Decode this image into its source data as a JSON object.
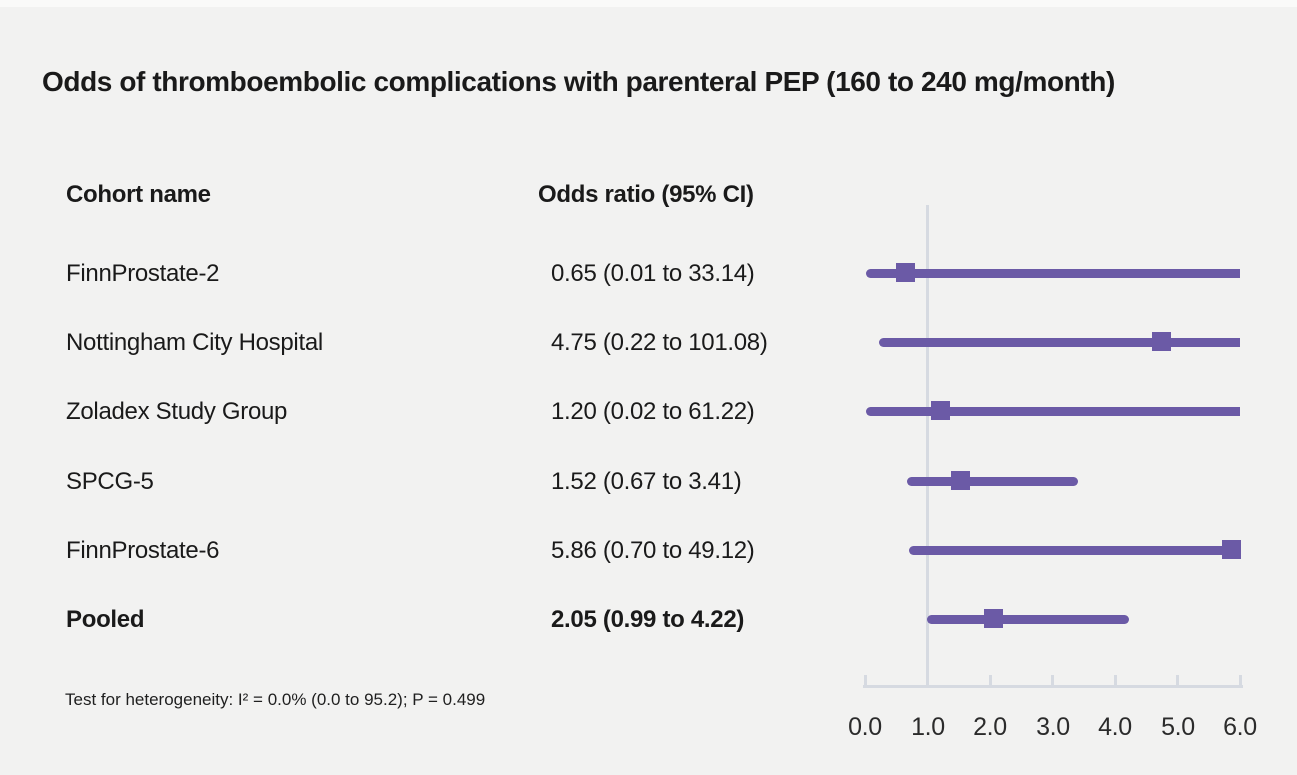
{
  "title": "Odds of thromboembolic complications with parenteral PEP (160 to 240 mg/month)",
  "table": {
    "cohort_header": "Cohort name",
    "or_header": "Odds ratio (95% CI)"
  },
  "footnote": "Test for heterogeneity: I² = 0.0% (0.0 to 95.2); P = 0.499",
  "chart_data": {
    "type": "forest",
    "title": "Odds of thromboembolic complications with parenteral PEP (160 to 240 mg/month)",
    "columns": [
      "Cohort name",
      "Odds ratio (95% CI)"
    ],
    "rows": [
      {
        "cohort": "FinnProstate-2",
        "label": "0.65 (0.01 to 33.14)",
        "or": 0.65,
        "lo": 0.01,
        "hi": 33.14,
        "pooled": false
      },
      {
        "cohort": "Nottingham City Hospital",
        "label": "4.75 (0.22 to 101.08)",
        "or": 4.75,
        "lo": 0.22,
        "hi": 101.08,
        "pooled": false
      },
      {
        "cohort": "Zoladex Study Group",
        "label": "1.20 (0.02 to 61.22)",
        "or": 1.2,
        "lo": 0.02,
        "hi": 61.22,
        "pooled": false
      },
      {
        "cohort": "SPCG-5",
        "label": "1.52 (0.67 to 3.41)",
        "or": 1.52,
        "lo": 0.67,
        "hi": 3.41,
        "pooled": false
      },
      {
        "cohort": "FinnProstate-6",
        "label": "5.86 (0.70 to 49.12)",
        "or": 5.86,
        "lo": 0.7,
        "hi": 49.12,
        "pooled": false
      },
      {
        "cohort": "Pooled",
        "label": "2.05 (0.99 to 4.22)",
        "or": 2.05,
        "lo": 0.99,
        "hi": 4.22,
        "pooled": true
      }
    ],
    "x_ticks": [
      "0.0",
      "1.0",
      "2.0",
      "3.0",
      "4.0",
      "5.0",
      "6.0"
    ],
    "xlim": [
      0,
      6
    ],
    "ref_line_x": 1.0,
    "grid": false,
    "legend": false,
    "footnote": "Test for heterogeneity: I² = 0.0% (0.0 to 95.2); P = 0.499",
    "colors": {
      "marker": "#6b5aa6",
      "line": "#6b5aa6",
      "axis": "#d6dae1",
      "background": "#f2f2f1",
      "text": "#1a1a1a"
    }
  }
}
